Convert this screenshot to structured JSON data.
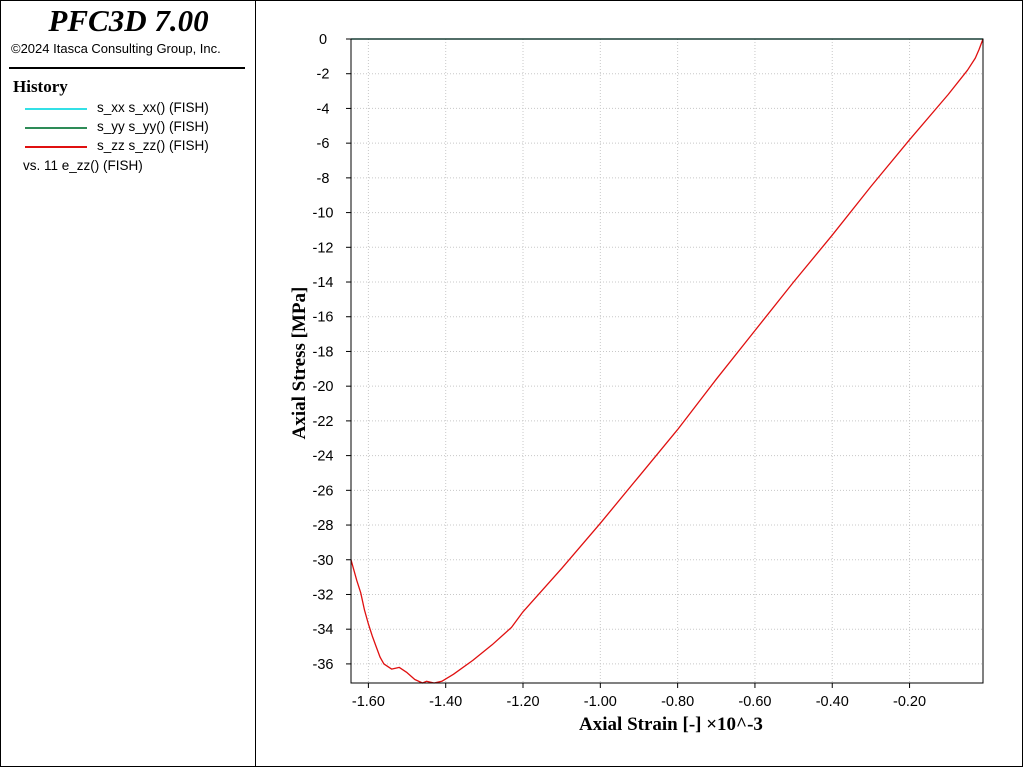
{
  "header": {
    "app_title": "PFC3D 7.00",
    "copyright": "©2024 Itasca Consulting Group, Inc."
  },
  "legend": {
    "heading": "History",
    "entries": [
      {
        "label": "s_xx s_xx() (FISH)",
        "color": "#33e0e6"
      },
      {
        "label": "s_yy s_yy() (FISH)",
        "color": "#2e8b57"
      },
      {
        "label": "s_zz s_zz() (FISH)",
        "color": "#e01010"
      }
    ],
    "versus": "vs. 11 e_zz() (FISH)"
  },
  "chart_data": {
    "type": "line",
    "xlabel": "Axial Strain [-] ×10^-3",
    "ylabel": "Axial Stress [MPa]",
    "xlim": [
      -1.645,
      -0.01
    ],
    "ylim": [
      -37.1,
      0
    ],
    "x_ticks": [
      -1.6,
      -1.4,
      -1.2,
      -1.0,
      -0.8,
      -0.6,
      -0.4,
      -0.2
    ],
    "x_tick_labels": [
      "-1.60",
      "-1.40",
      "-1.20",
      "-1.00",
      "-0.80",
      "-0.60",
      "-0.40",
      "-0.20"
    ],
    "y_ticks": [
      0,
      -2,
      -4,
      -6,
      -8,
      -10,
      -12,
      -14,
      -16,
      -18,
      -20,
      -22,
      -24,
      -26,
      -28,
      -30,
      -32,
      -34,
      -36
    ],
    "y_tick_labels": [
      "0",
      "-2",
      "-4",
      "-6",
      "-8",
      "-10",
      "-12",
      "-14",
      "-16",
      "-18",
      "-20",
      "-22",
      "-24",
      "-26",
      "-28",
      "-30",
      "-32",
      "-34",
      "-36"
    ],
    "grid": true,
    "series": [
      {
        "name": "s_xx s_xx() (FISH)",
        "color": "#33e0e6",
        "x": [
          -1.645,
          -0.01
        ],
        "y": [
          0,
          0
        ]
      },
      {
        "name": "s_yy s_yy() (FISH)",
        "color": "#2e8b57",
        "x": [
          -1.645,
          -0.01
        ],
        "y": [
          0,
          0
        ]
      },
      {
        "name": "s_zz s_zz() (FISH)",
        "color": "#e01010",
        "x": [
          -0.01,
          -0.02,
          -0.03,
          -0.05,
          -0.1,
          -0.2,
          -0.3,
          -0.4,
          -0.5,
          -0.6,
          -0.7,
          -0.8,
          -0.9,
          -1.0,
          -1.1,
          -1.2,
          -1.23,
          -1.28,
          -1.33,
          -1.38,
          -1.41,
          -1.43,
          -1.45,
          -1.46,
          -1.48,
          -1.5,
          -1.52,
          -1.54,
          -1.56,
          -1.57,
          -1.58,
          -1.59,
          -1.6,
          -1.61,
          -1.62,
          -1.63,
          -1.645
        ],
        "y": [
          0,
          -0.6,
          -1.1,
          -1.8,
          -3.2,
          -5.8,
          -8.5,
          -11.3,
          -14.0,
          -16.8,
          -19.6,
          -22.5,
          -25.2,
          -27.9,
          -30.5,
          -33.0,
          -33.9,
          -34.9,
          -35.8,
          -36.6,
          -37.0,
          -37.1,
          -37.0,
          -37.1,
          -36.9,
          -36.5,
          -36.2,
          -36.3,
          -36.0,
          -35.6,
          -35.0,
          -34.4,
          -33.7,
          -32.9,
          -31.9,
          -31.2,
          -30.0
        ]
      }
    ]
  }
}
